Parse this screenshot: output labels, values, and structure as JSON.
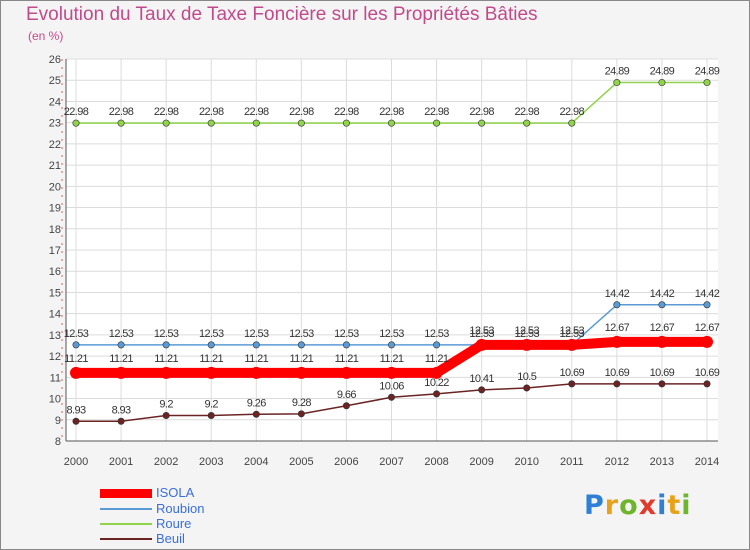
{
  "title": "Evolution du Taux de Taxe Foncière sur les Propriétés Bâties",
  "unit": "(en %)",
  "logo": {
    "text": "Proxiti"
  },
  "colors": {
    "isola": "#ff0000",
    "roubion": "#5b9bd5",
    "roure": "#8fd44a",
    "beuil": "#6b2424",
    "grid": "#dcdcdc",
    "axis": "#555555",
    "labels": "#444444"
  },
  "chart_data": {
    "type": "line",
    "title": "Evolution du Taux de Taxe Foncière sur les Propriétés Bâties",
    "ylabel": "(en %)",
    "xlabel": "",
    "ylim": [
      8,
      26
    ],
    "yticks": [
      "8",
      "9",
      "10",
      "11",
      "12",
      "13",
      "14",
      "15",
      "16",
      "17",
      "18",
      "19",
      "20",
      "21",
      "22",
      "23",
      "24",
      "25",
      "26"
    ],
    "categories": [
      "2000",
      "2001",
      "2002",
      "2003",
      "2004",
      "2005",
      "2006",
      "2007",
      "2008",
      "2009",
      "2010",
      "2011",
      "2012",
      "2013",
      "2014"
    ],
    "series": [
      {
        "name": "ISOLA",
        "color": "#ff0000",
        "values": [
          11.21,
          11.21,
          11.21,
          11.21,
          11.21,
          11.21,
          11.21,
          11.21,
          11.21,
          12.53,
          12.53,
          12.53,
          12.67,
          12.67,
          12.67
        ],
        "labels": [
          "11.21",
          "11.21",
          "11.21",
          "11.21",
          "11.21",
          "11.21",
          "11.21",
          "11.21",
          "11.21",
          "12.53",
          "12.53",
          "12.53",
          "12.67",
          "12.67",
          "12.67"
        ]
      },
      {
        "name": "Roubion",
        "color": "#5b9bd5",
        "values": [
          12.53,
          12.53,
          12.53,
          12.53,
          12.53,
          12.53,
          12.53,
          12.53,
          12.53,
          12.53,
          12.53,
          12.53,
          14.42,
          14.42,
          14.42
        ],
        "labels": [
          "12.53",
          "12.53",
          "12.53",
          "12.53",
          "12.53",
          "12.53",
          "12.53",
          "12.53",
          "12.53",
          "12.53",
          "12.53",
          "12.53",
          "14.42",
          "14.42",
          "14.42"
        ]
      },
      {
        "name": "Roure",
        "color": "#8fd44a",
        "values": [
          22.98,
          22.98,
          22.98,
          22.98,
          22.98,
          22.98,
          22.98,
          22.98,
          22.98,
          22.98,
          22.98,
          22.98,
          24.89,
          24.89,
          24.89
        ],
        "labels": [
          "22.98",
          "22.98",
          "22.98",
          "22.98",
          "22.98",
          "22.98",
          "22.98",
          "22.98",
          "22.98",
          "22.98",
          "22.98",
          "22.98",
          "24.89",
          "24.89",
          "24.89"
        ]
      },
      {
        "name": "Beuil",
        "color": "#6b2424",
        "values": [
          8.93,
          8.93,
          9.2,
          9.2,
          9.26,
          9.28,
          9.66,
          10.06,
          10.22,
          10.41,
          10.5,
          10.69,
          10.69,
          10.69,
          10.69
        ],
        "labels": [
          "8.93",
          "8.93",
          "9.2",
          "9.2",
          "9.26",
          "9.28",
          "9.66",
          "10.06",
          "10.22",
          "10.41",
          "10.5",
          "10.69",
          "10.69",
          "10.69",
          "10.69"
        ]
      }
    ],
    "legend": [
      "ISOLA",
      "Roubion",
      "Roure",
      "Beuil"
    ],
    "legend_position": "bottom-left",
    "grid": true
  }
}
